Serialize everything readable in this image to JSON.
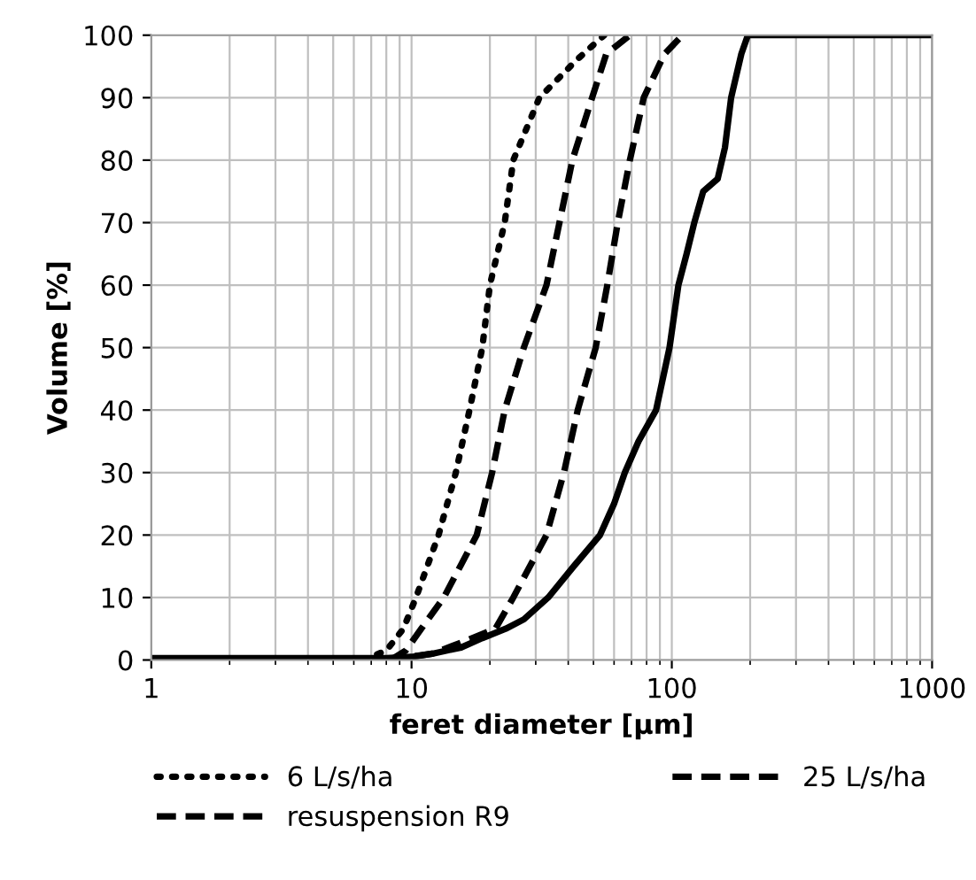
{
  "chart_data": {
    "type": "line",
    "xlabel": "feret diameter [µm]",
    "ylabel": "Volume [%]",
    "log": "x",
    "xlim": [
      1,
      1000
    ],
    "xticks": [
      1,
      10,
      100,
      1000
    ],
    "ylim": [
      0,
      100
    ],
    "yticks": [
      0,
      10,
      20,
      30,
      40,
      50,
      60,
      70,
      80,
      90,
      100
    ],
    "grid": true,
    "legend": "bottom",
    "marker": "none",
    "series": [
      {
        "name": "6 L/s/ha",
        "color": "#000000",
        "line_style": "dotted",
        "x": [
          6.5,
          8,
          9.3,
          10.4,
          12.7,
          14.8,
          16.7,
          18.7,
          20,
          22.8,
          24.6,
          31,
          43,
          55
        ],
        "values": [
          0,
          1.5,
          5,
          10,
          20,
          30,
          40,
          50,
          60,
          70,
          80,
          90,
          96,
          100
        ]
      },
      {
        "name": "25 L/s/ha",
        "color": "#000000",
        "line_style": "dashed",
        "x": [
          8.3,
          9.5,
          10.9,
          13.3,
          17.8,
          20.4,
          22.8,
          27,
          33,
          37,
          41.5,
          49.4,
          56,
          69
        ],
        "values": [
          0,
          1.5,
          5,
          10,
          20,
          30,
          40,
          50,
          60,
          70,
          80,
          90,
          97,
          100
        ]
      },
      {
        "name": "resuspension R9",
        "color": "#000000",
        "line_style": "dashed",
        "x": [
          8,
          12,
          16,
          21,
          24.6,
          33,
          38.5,
          43.5,
          51,
          56.5,
          62,
          69,
          78,
          93.7,
          110
        ],
        "values": [
          0,
          1,
          3,
          5,
          10,
          20,
          30,
          40,
          50,
          60,
          70,
          80,
          90,
          97,
          100
        ]
      },
      {
        "color": "#000000",
        "line_style": "solid",
        "x": [
          1,
          8,
          10,
          12,
          15.5,
          18.7,
          23,
          27,
          33.5,
          42,
          53,
          60,
          66,
          74.5,
          87,
          98,
          106,
          114,
          122,
          132,
          150,
          160,
          169,
          185,
          196,
          1000
        ],
        "values": [
          0.3,
          0.3,
          0.5,
          1,
          2,
          3.5,
          5,
          6.5,
          10,
          15,
          20,
          25,
          30,
          35,
          40,
          50,
          60,
          65,
          70,
          75,
          77,
          82,
          90,
          97,
          100,
          100
        ]
      }
    ]
  }
}
